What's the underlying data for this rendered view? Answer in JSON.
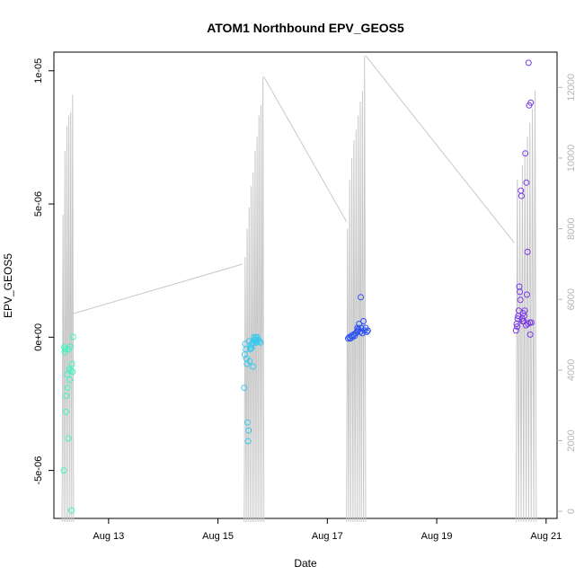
{
  "chart_data": {
    "type": "scatter",
    "title": "ATOM1 Northbound EPV_GEOS5",
    "xlabel": "Date",
    "ylabel": "EPV_GEOS5",
    "x_unit": "day of August",
    "xlim": [
      12.0,
      21.2
    ],
    "ylim": [
      -6.8e-06,
      1.07e-05
    ],
    "x_ticks": [
      {
        "value": 13,
        "label": "Aug 13"
      },
      {
        "value": 15,
        "label": "Aug 15"
      },
      {
        "value": 17,
        "label": "Aug 17"
      },
      {
        "value": 19,
        "label": "Aug 19"
      },
      {
        "value": 21,
        "label": "Aug 21"
      }
    ],
    "y_ticks": [
      {
        "value": -5e-06,
        "label": "-5e-06"
      },
      {
        "value": 0,
        "label": "0e+00"
      },
      {
        "value": 5e-06,
        "label": "5e-06"
      },
      {
        "value": 1e-05,
        "label": "1e-05"
      }
    ],
    "y2lim": [
      -200,
      13000
    ],
    "y2_ticks": [
      {
        "value": 0,
        "label": "0"
      },
      {
        "value": 2000,
        "label": "2000"
      },
      {
        "value": 4000,
        "label": "4000"
      },
      {
        "value": 6000,
        "label": "6000"
      },
      {
        "value": 8000,
        "label": "8000"
      },
      {
        "value": 10000,
        "label": "10000"
      },
      {
        "value": 12000,
        "label": "12000"
      }
    ],
    "grid": false,
    "legend": "none",
    "point_style": "open circle",
    "series": [
      {
        "color": "#3cf5c2",
        "points": [
          [
            12.18,
            -5e-06
          ],
          [
            12.19,
            -3.8e-07
          ],
          [
            12.2,
            -5.5e-07
          ],
          [
            12.21,
            -4.5e-07
          ],
          [
            12.22,
            -2.8e-06
          ],
          [
            12.23,
            -2.2e-06
          ],
          [
            12.24,
            -1.4e-06
          ],
          [
            12.25,
            -1.9e-06
          ],
          [
            12.26,
            -3.8e-06
          ],
          [
            12.27,
            -4.5e-07
          ],
          [
            12.28,
            -1.2e-06
          ],
          [
            12.29,
            -1.6e-06
          ],
          [
            12.3,
            -3.5e-07
          ],
          [
            12.31,
            -1.25e-06
          ],
          [
            12.32,
            -6.5e-06
          ],
          [
            12.33,
            -1e-06
          ],
          [
            12.34,
            -1.3e-06
          ],
          [
            12.35,
            1e-08
          ]
        ]
      },
      {
        "color": "#38c9ee",
        "points": [
          [
            15.48,
            -1.9e-06
          ],
          [
            15.49,
            -6.5e-07
          ],
          [
            15.5,
            -2.5e-07
          ],
          [
            15.51,
            -4.5e-07
          ],
          [
            15.52,
            -8e-07
          ],
          [
            15.53,
            -1e-06
          ],
          [
            15.54,
            -3.2e-06
          ],
          [
            15.55,
            -3.9e-06
          ],
          [
            15.56,
            -3.5e-06
          ],
          [
            15.57,
            -1.5e-07
          ],
          [
            15.58,
            -9e-07
          ],
          [
            15.59,
            -4.5e-07
          ],
          [
            15.6,
            -4e-07
          ],
          [
            15.61,
            -3e-07
          ],
          [
            15.62,
            -4e-07
          ],
          [
            15.63,
            -2e-07
          ],
          [
            15.64,
            -1.1e-06
          ],
          [
            15.65,
            -2e-07
          ],
          [
            15.66,
            0
          ],
          [
            15.67,
            -1e-07
          ],
          [
            15.68,
            -1e-07
          ],
          [
            15.69,
            0
          ],
          [
            15.7,
            -2e-07
          ],
          [
            15.71,
            -1.5e-07
          ],
          [
            15.72,
            0
          ],
          [
            15.74,
            -1e-07
          ],
          [
            15.76,
            -1.5e-07
          ],
          [
            15.78,
            -2e-07
          ]
        ]
      },
      {
        "color": "#2a50f0",
        "points": [
          [
            17.38,
            -5e-08
          ],
          [
            17.4,
            0
          ],
          [
            17.42,
            -5e-08
          ],
          [
            17.44,
            5e-08
          ],
          [
            17.46,
            0
          ],
          [
            17.48,
            1e-07
          ],
          [
            17.5,
            5e-08
          ],
          [
            17.52,
            1.5e-07
          ],
          [
            17.54,
            2e-07
          ],
          [
            17.55,
            3.5e-07
          ],
          [
            17.56,
            2.5e-07
          ],
          [
            17.57,
            3e-07
          ],
          [
            17.58,
            5e-07
          ],
          [
            17.6,
            2e-07
          ],
          [
            17.61,
            1.5e-06
          ],
          [
            17.62,
            3.5e-07
          ],
          [
            17.64,
            1.5e-07
          ],
          [
            17.66,
            6e-07
          ],
          [
            17.68,
            2.5e-07
          ],
          [
            17.7,
            3.5e-07
          ],
          [
            17.72,
            2e-07
          ],
          [
            17.74,
            2.5e-07
          ]
        ]
      },
      {
        "color": "#7a38e6",
        "points": [
          [
            20.45,
            2.5e-07
          ],
          [
            20.46,
            5e-07
          ],
          [
            20.47,
            4e-07
          ],
          [
            20.48,
            7e-07
          ],
          [
            20.49,
            8e-07
          ],
          [
            20.5,
            1e-06
          ],
          [
            20.51,
            1.9e-06
          ],
          [
            20.52,
            1.7e-06
          ],
          [
            20.53,
            1.4e-06
          ],
          [
            20.54,
            5.5e-06
          ],
          [
            20.55,
            5.3e-06
          ],
          [
            20.56,
            7e-07
          ],
          [
            20.57,
            6e-07
          ],
          [
            20.58,
            9e-07
          ],
          [
            20.59,
            6e-07
          ],
          [
            20.6,
            8e-07
          ],
          [
            20.61,
            1e-06
          ],
          [
            20.62,
            6.9e-06
          ],
          [
            20.63,
            4.5e-07
          ],
          [
            20.64,
            5.8e-06
          ],
          [
            20.65,
            1.6e-06
          ],
          [
            20.66,
            3.2e-06
          ],
          [
            20.67,
            5e-07
          ],
          [
            20.68,
            1.03e-05
          ],
          [
            20.69,
            8.7e-06
          ],
          [
            20.7,
            5.5e-07
          ],
          [
            20.71,
            1e-07
          ],
          [
            20.72,
            8.8e-06
          ],
          [
            20.73,
            5.5e-07
          ]
        ]
      }
    ],
    "overlay_line": {
      "color": "#c8c8c8",
      "axis": "right",
      "segments": [
        {
          "x_start": 12.15,
          "x_end": 12.36,
          "low": -300,
          "high": 11800,
          "peaks": [
            8400,
            10200,
            10900,
            11200,
            11300,
            11800
          ]
        },
        {
          "x_start": 15.48,
          "x_end": 15.84,
          "low": -300,
          "high": 12300,
          "peaks": [
            7200,
            8000,
            8600,
            9200,
            9600,
            10200,
            10600,
            11200,
            11500,
            12300
          ]
        },
        {
          "x_start": 17.35,
          "x_end": 17.7,
          "low": -300,
          "high": 12900,
          "peaks": [
            8000,
            9400,
            10000,
            10500,
            10800,
            11200,
            11600,
            11900,
            12900
          ]
        },
        {
          "x_start": 20.45,
          "x_end": 20.82,
          "low": -300,
          "high": 11900,
          "peaks": [
            9400,
            8800,
            9800,
            10200,
            10600,
            11000,
            11400,
            11900
          ]
        }
      ],
      "bridges": [
        [
          [
            12.36,
            5600
          ],
          [
            15.45,
            7000
          ]
        ],
        [
          [
            15.84,
            12300
          ],
          [
            17.35,
            8200
          ]
        ],
        [
          [
            17.7,
            12900
          ],
          [
            20.42,
            7600
          ]
        ]
      ]
    }
  }
}
